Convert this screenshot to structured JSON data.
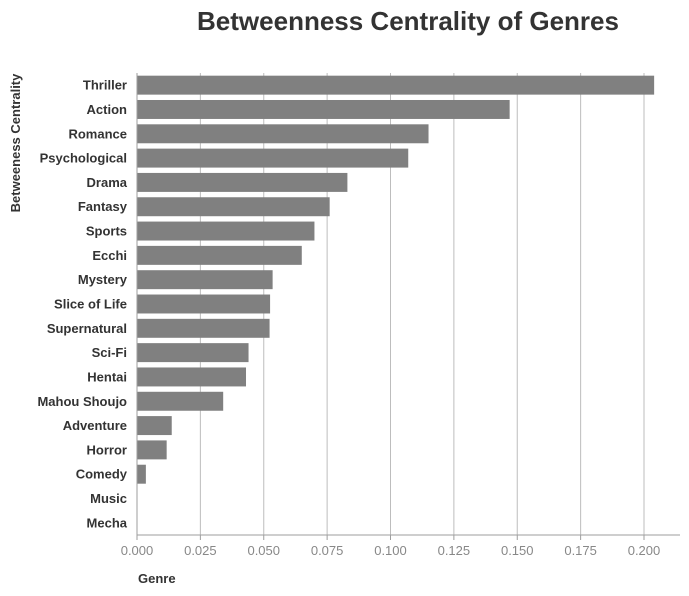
{
  "chart_data": {
    "type": "bar",
    "orientation": "horizontal",
    "title": "Betweenness Centrality of Genres",
    "xlabel": "Genre",
    "ylabel": "Betweeness Centrality",
    "categories": [
      "Thriller",
      "Action",
      "Romance",
      "Psychological",
      "Drama",
      "Fantasy",
      "Sports",
      "Ecchi",
      "Mystery",
      "Slice of Life",
      "Supernatural",
      "Sci-Fi",
      "Hentai",
      "Mahou Shoujo",
      "Adventure",
      "Horror",
      "Comedy",
      "Music",
      "Mecha"
    ],
    "values": [
      0.204,
      0.147,
      0.115,
      0.107,
      0.083,
      0.076,
      0.07,
      0.065,
      0.0535,
      0.0525,
      0.0523,
      0.044,
      0.043,
      0.034,
      0.0137,
      0.0117,
      0.0035,
      0.0,
      0.0
    ],
    "xticks": [
      "0.000",
      "0.025",
      "0.050",
      "0.075",
      "0.100",
      "0.125",
      "0.150",
      "0.175",
      "0.200"
    ],
    "xlim": [
      0,
      0.215
    ],
    "grid": true,
    "bar_color": "#808080"
  }
}
